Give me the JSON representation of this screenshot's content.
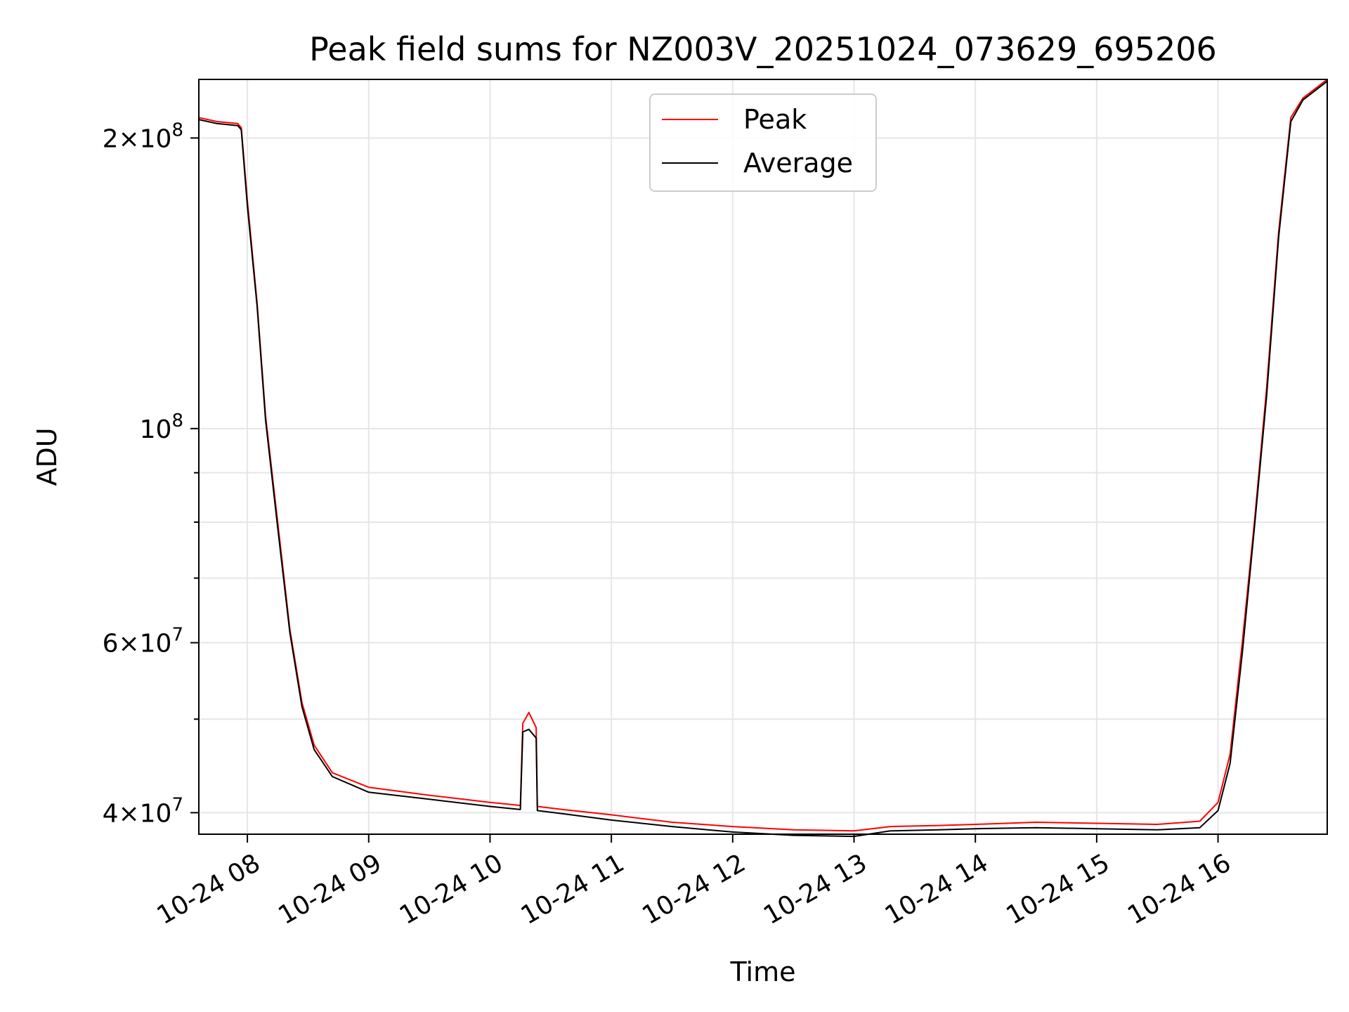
{
  "chart_data": {
    "type": "line",
    "title": "Peak field sums for NZ003V_20251024_073629_695206",
    "xlabel": "Time",
    "ylabel": "ADU",
    "yscale": "log",
    "ylim": [
      38000000,
      230000000
    ],
    "xlim_hours": [
      7.6,
      16.9
    ],
    "grid": true,
    "legend_position": "top-center",
    "x_ticks": [
      {
        "hour": 8,
        "label": "10-24 08"
      },
      {
        "hour": 9,
        "label": "10-24 09"
      },
      {
        "hour": 10,
        "label": "10-24 10"
      },
      {
        "hour": 11,
        "label": "10-24 11"
      },
      {
        "hour": 12,
        "label": "10-24 12"
      },
      {
        "hour": 13,
        "label": "10-24 13"
      },
      {
        "hour": 14,
        "label": "10-24 14"
      },
      {
        "hour": 15,
        "label": "10-24 15"
      },
      {
        "hour": 16,
        "label": "10-24 16"
      }
    ],
    "y_ticks_major": [
      {
        "value": 40000000,
        "mant": "4",
        "exp": "7"
      },
      {
        "value": 60000000,
        "mant": "6",
        "exp": "7"
      },
      {
        "value": 100000000,
        "mant": "",
        "exp": "8"
      },
      {
        "value": 200000000,
        "mant": "2",
        "exp": "8"
      }
    ],
    "y_ticks_minor": [
      50000000,
      70000000,
      80000000,
      90000000
    ],
    "series": [
      {
        "name": "Peak",
        "color": "#ff0000",
        "points": [
          [
            7.6,
            210000000
          ],
          [
            7.75,
            208000000
          ],
          [
            7.92,
            207000000
          ],
          [
            7.95,
            205000000
          ],
          [
            8.0,
            172000000
          ],
          [
            8.08,
            135000000
          ],
          [
            8.15,
            103000000
          ],
          [
            8.25,
            80000000
          ],
          [
            8.35,
            62000000
          ],
          [
            8.45,
            52000000
          ],
          [
            8.55,
            47000000
          ],
          [
            8.7,
            44000000
          ],
          [
            9.0,
            42500000
          ],
          [
            9.5,
            41700000
          ],
          [
            10.0,
            41000000
          ],
          [
            10.25,
            40700000
          ],
          [
            10.27,
            49500000
          ],
          [
            10.32,
            50800000
          ],
          [
            10.38,
            49000000
          ],
          [
            10.39,
            40600000
          ],
          [
            10.6,
            40300000
          ],
          [
            11.0,
            39800000
          ],
          [
            11.5,
            39100000
          ],
          [
            12.0,
            38700000
          ],
          [
            12.5,
            38400000
          ],
          [
            13.0,
            38300000
          ],
          [
            13.3,
            38700000
          ],
          [
            13.7,
            38800000
          ],
          [
            14.0,
            38900000
          ],
          [
            14.5,
            39100000
          ],
          [
            15.0,
            39000000
          ],
          [
            15.5,
            38900000
          ],
          [
            15.85,
            39200000
          ],
          [
            16.0,
            41000000
          ],
          [
            16.1,
            46000000
          ],
          [
            16.2,
            60000000
          ],
          [
            16.3,
            80000000
          ],
          [
            16.4,
            110000000
          ],
          [
            16.5,
            160000000
          ],
          [
            16.6,
            210000000
          ],
          [
            16.7,
            220000000
          ],
          [
            16.9,
            230000000
          ]
        ]
      },
      {
        "name": "Average",
        "color": "#000000",
        "points": [
          [
            7.6,
            209000000
          ],
          [
            7.75,
            207000000
          ],
          [
            7.92,
            206000000
          ],
          [
            7.95,
            204000000
          ],
          [
            8.0,
            170000000
          ],
          [
            8.08,
            134000000
          ],
          [
            8.15,
            102000000
          ],
          [
            8.25,
            79000000
          ],
          [
            8.35,
            61500000
          ],
          [
            8.45,
            51500000
          ],
          [
            8.55,
            46500000
          ],
          [
            8.7,
            43600000
          ],
          [
            9.0,
            42000000
          ],
          [
            9.5,
            41300000
          ],
          [
            10.0,
            40600000
          ],
          [
            10.25,
            40300000
          ],
          [
            10.27,
            48500000
          ],
          [
            10.32,
            48800000
          ],
          [
            10.38,
            47800000
          ],
          [
            10.39,
            40200000
          ],
          [
            10.6,
            39900000
          ],
          [
            11.0,
            39300000
          ],
          [
            11.5,
            38700000
          ],
          [
            12.0,
            38200000
          ],
          [
            12.5,
            37900000
          ],
          [
            13.0,
            37800000
          ],
          [
            13.3,
            38300000
          ],
          [
            13.7,
            38400000
          ],
          [
            14.0,
            38500000
          ],
          [
            14.5,
            38600000
          ],
          [
            15.0,
            38500000
          ],
          [
            15.5,
            38400000
          ],
          [
            15.85,
            38600000
          ],
          [
            16.0,
            40200000
          ],
          [
            16.1,
            45000000
          ],
          [
            16.2,
            58500000
          ],
          [
            16.3,
            79000000
          ],
          [
            16.4,
            108000000
          ],
          [
            16.5,
            158000000
          ],
          [
            16.6,
            208000000
          ],
          [
            16.7,
            219000000
          ],
          [
            16.9,
            229000000
          ]
        ]
      }
    ]
  }
}
